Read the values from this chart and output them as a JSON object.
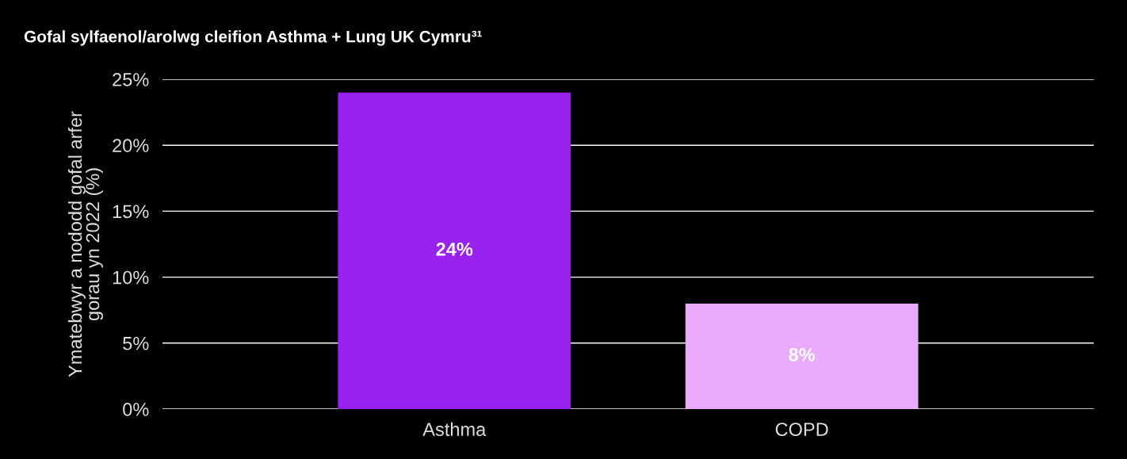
{
  "chart_data": {
    "type": "bar",
    "title": "Gofal sylfaenol/arolwg cleifion Asthma + Lung UK Cymru³¹",
    "ylabel": "Ymatebwyr a nododd gofal arfer\ngorau yn 2022 (%)",
    "categories": [
      "Asthma",
      "COPD"
    ],
    "values": [
      24,
      8
    ],
    "colors": [
      "#9821ee",
      "#eaaafc"
    ],
    "value_labels": [
      "24%",
      "8%"
    ],
    "ylim": [
      0,
      25
    ],
    "yticks": [
      {
        "value": 0,
        "label": "0%"
      },
      {
        "value": 5,
        "label": "5%"
      },
      {
        "value": 10,
        "label": "10%"
      },
      {
        "value": 15,
        "label": "15%"
      },
      {
        "value": 20,
        "label": "20%"
      },
      {
        "value": 25,
        "label": "25%"
      }
    ],
    "grid": "y",
    "legend": false
  }
}
